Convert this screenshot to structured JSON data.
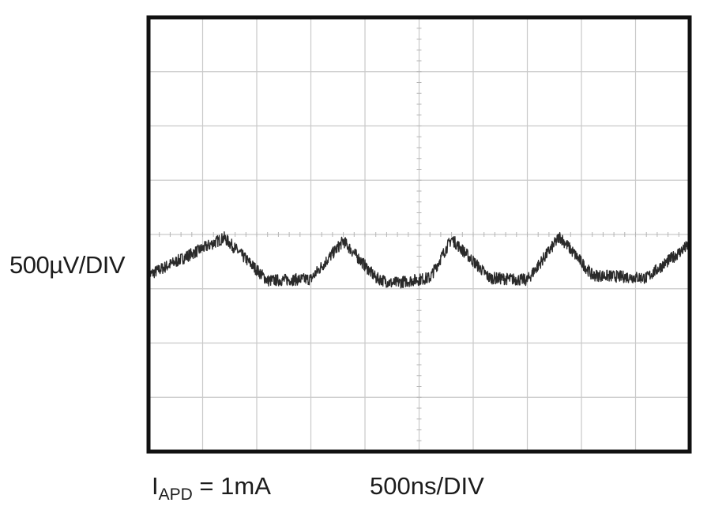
{
  "chart_data": {
    "type": "line",
    "subtype": "oscilloscope-trace",
    "grid": {
      "on": true,
      "divisions_x": 10,
      "divisions_y": 8,
      "center_axes_ticked": true
    },
    "xlim": [
      0,
      10
    ],
    "ylim": [
      -4,
      4
    ],
    "axis_units": {
      "x": "divisions (500ns/DIV)",
      "y": "divisions (500µV/DIV)"
    },
    "series": [
      {
        "noisy": true,
        "color": "#2a2a2a",
        "points": [
          [
            0.0,
            -0.75
          ],
          [
            1.4,
            -0.06
          ],
          [
            2.2,
            -0.85
          ],
          [
            3.0,
            -0.82
          ],
          [
            3.6,
            -0.12
          ],
          [
            4.2,
            -0.8
          ],
          [
            4.5,
            -0.9
          ],
          [
            5.2,
            -0.8
          ],
          [
            5.6,
            -0.08
          ],
          [
            6.3,
            -0.8
          ],
          [
            7.0,
            -0.84
          ],
          [
            7.6,
            -0.04
          ],
          [
            8.2,
            -0.75
          ],
          [
            9.2,
            -0.8
          ],
          [
            10.0,
            -0.18
          ]
        ]
      }
    ],
    "labels": {
      "vertical_scale": "500µV/DIV",
      "horizontal_scale": "500ns/DIV",
      "condition_main": "I",
      "condition_sub": "APD",
      "condition_value": " = 1mA"
    }
  },
  "colors": {
    "frame": "#111111",
    "grid": "#c9c9c9",
    "trace": "#2a2a2a",
    "text": "#1c1c1c"
  }
}
